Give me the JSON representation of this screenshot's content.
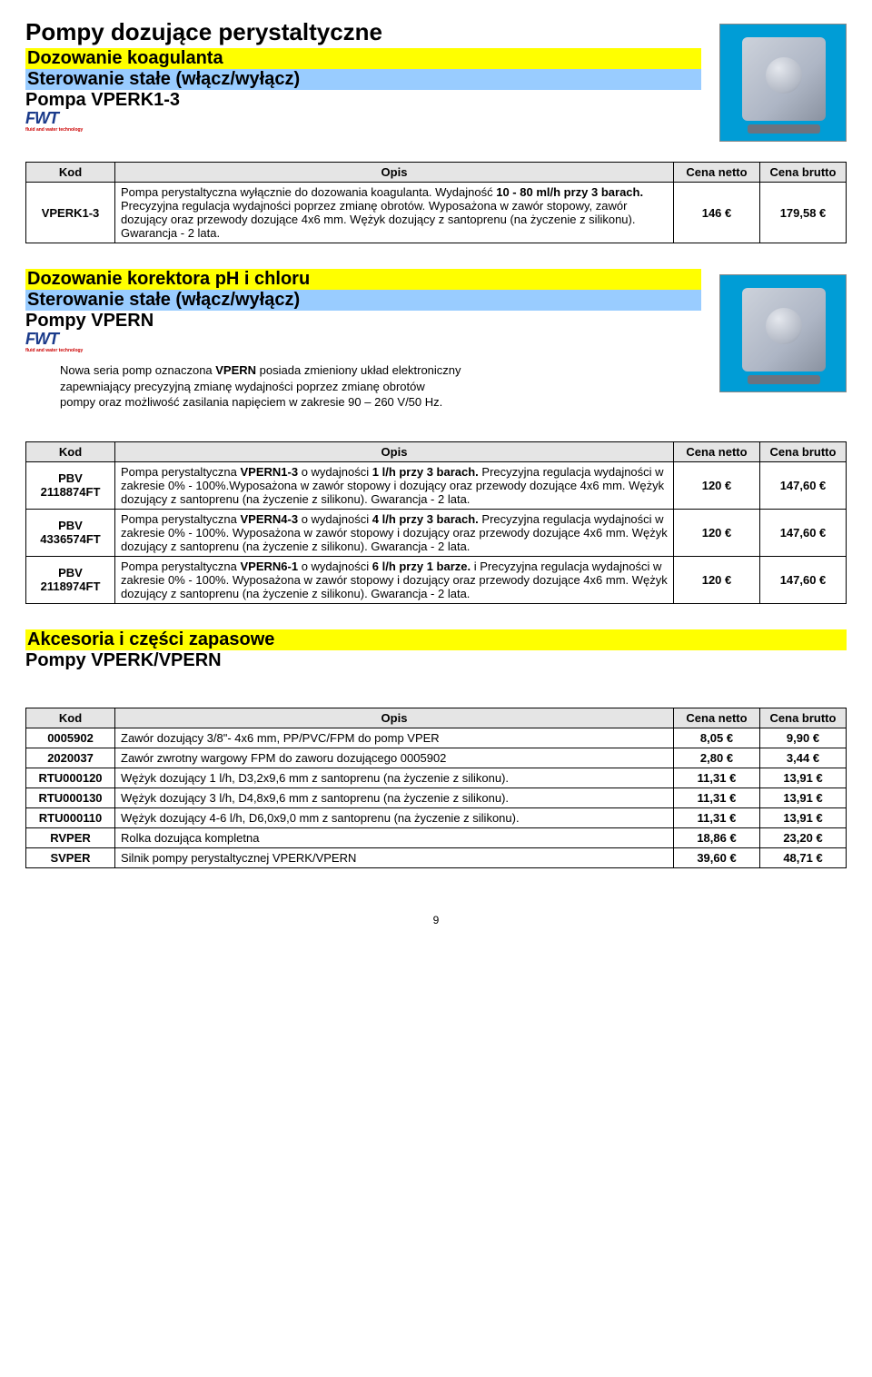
{
  "section1": {
    "main_title": "Pompy dozujące perystaltyczne",
    "yellow": "Dozowanie koagulanta",
    "blue": "Sterowanie stałe (włącz/wyłącz)",
    "name": "Pompa VPERK1-3"
  },
  "headers": {
    "kod": "Kod",
    "opis": "Opis",
    "netto": "Cena netto",
    "brutto": "Cena brutto"
  },
  "table1": {
    "rows": [
      {
        "kod": "VPERK1-3",
        "opis_pre": "Pompa perystaltyczna wyłącznie do dozowania koagulanta. Wydajność ",
        "opis_bold": "10 - 80 ml/h przy 3 barach.",
        "opis_post": " Precyzyjna regulacja wydajności poprzez zmianę obrotów. Wyposażona w zawór stopowy, zawór dozujący oraz przewody dozujące 4x6 mm. Wężyk dozujący z santoprenu (na życzenie z silikonu). Gwarancja - 2 lata.",
        "netto": "146 €",
        "brutto": "179,58 €"
      }
    ]
  },
  "section2": {
    "yellow": "Dozowanie korektora pH i chloru",
    "blue": "Sterowanie stałe (włącz/wyłącz)",
    "name": "Pompy VPERN",
    "desc_l1": "Nowa seria pomp oznaczona ",
    "desc_bold": "VPERN",
    "desc_l1b": " posiada zmieniony układ elektroniczny",
    "desc_l2": "zapewniający precyzyjną zmianę wydajności poprzez zmianę obrotów",
    "desc_l3": "pompy oraz możliwość zasilania napięciem w zakresie 90 – 260 V/50 Hz."
  },
  "table2": {
    "rows": [
      {
        "kod": "PBV 2118874FT",
        "opis_pre": "Pompa perystaltyczna ",
        "opis_bold": "VPERN1-3",
        "opis_mid": " o wydajności ",
        "opis_bold2": "1 l/h przy 3 barach.",
        "opis_post": " Precyzyjna regulacja wydajności w zakresie 0% - 100%.Wyposażona w zawór stopowy i dozujący oraz przewody dozujące 4x6 mm. Wężyk dozujący z santoprenu (na życzenie z silikonu). Gwarancja - 2 lata.",
        "netto": "120 €",
        "brutto": "147,60 €"
      },
      {
        "kod": "PBV 4336574FT",
        "opis_pre": "Pompa perystaltyczna ",
        "opis_bold": "VPERN4-3",
        "opis_mid": " o wydajności ",
        "opis_bold2": "4 l/h przy 3 barach.",
        "opis_post": " Precyzyjna regulacja wydajności w zakresie 0% - 100%. Wyposażona w zawór stopowy i dozujący oraz przewody dozujące 4x6 mm. Wężyk dozujący z santoprenu (na życzenie z silikonu). Gwarancja - 2 lata.",
        "netto": "120 €",
        "brutto": "147,60 €"
      },
      {
        "kod": "PBV 2118974FT",
        "opis_pre": "Pompa perystaltyczna ",
        "opis_bold": "VPERN6-1",
        "opis_mid": " o wydajności ",
        "opis_bold2": "6 l/h przy 1 barze.",
        "opis_post": " i Precyzyjna regulacja wydajności w zakresie 0% - 100%. Wyposażona w zawór stopowy i dozujący oraz przewody dozujące 4x6 mm. Wężyk dozujący z santoprenu (na życzenie z silikonu). Gwarancja - 2 lata.",
        "netto": "120 €",
        "brutto": "147,60 €"
      }
    ]
  },
  "section3": {
    "yellow": "Akcesoria i części zapasowe",
    "name": "Pompy VPERK/VPERN"
  },
  "table3": {
    "rows": [
      {
        "kod": "0005902",
        "opis": "Zawór dozujący 3/8\"- 4x6 mm, PP/PVC/FPM do pomp  VPER",
        "netto": "8,05 €",
        "brutto": "9,90 €"
      },
      {
        "kod": "2020037",
        "opis": "Zawór zwrotny wargowy FPM do zaworu dozującego 0005902",
        "netto": "2,80 €",
        "brutto": "3,44 €"
      },
      {
        "kod": "RTU000120",
        "opis": "Wężyk dozujący 1 l/h, D3,2x9,6 mm z santoprenu (na życzenie z silikonu).",
        "netto": "11,31 €",
        "brutto": "13,91 €"
      },
      {
        "kod": "RTU000130",
        "opis": "Wężyk dozujący 3 l/h, D4,8x9,6 mm z santoprenu (na życzenie z silikonu).",
        "netto": "11,31 €",
        "brutto": "13,91 €"
      },
      {
        "kod": "RTU000110",
        "opis": "Wężyk dozujący 4-6 l/h, D6,0x9,0 mm z santoprenu (na życzenie z silikonu).",
        "netto": "11,31 €",
        "brutto": "13,91 €"
      },
      {
        "kod": "RVPER",
        "opis": "Rolka dozująca kompletna",
        "netto": "18,86 €",
        "brutto": "23,20 €"
      },
      {
        "kod": "SVPER",
        "opis": "Silnik pompy perystaltycznej VPERK/VPERN",
        "netto": "39,60 €",
        "brutto": "48,71 €"
      }
    ]
  },
  "page_number": "9",
  "logo_text": "FWT",
  "logo_tag": "fluid and water technology"
}
